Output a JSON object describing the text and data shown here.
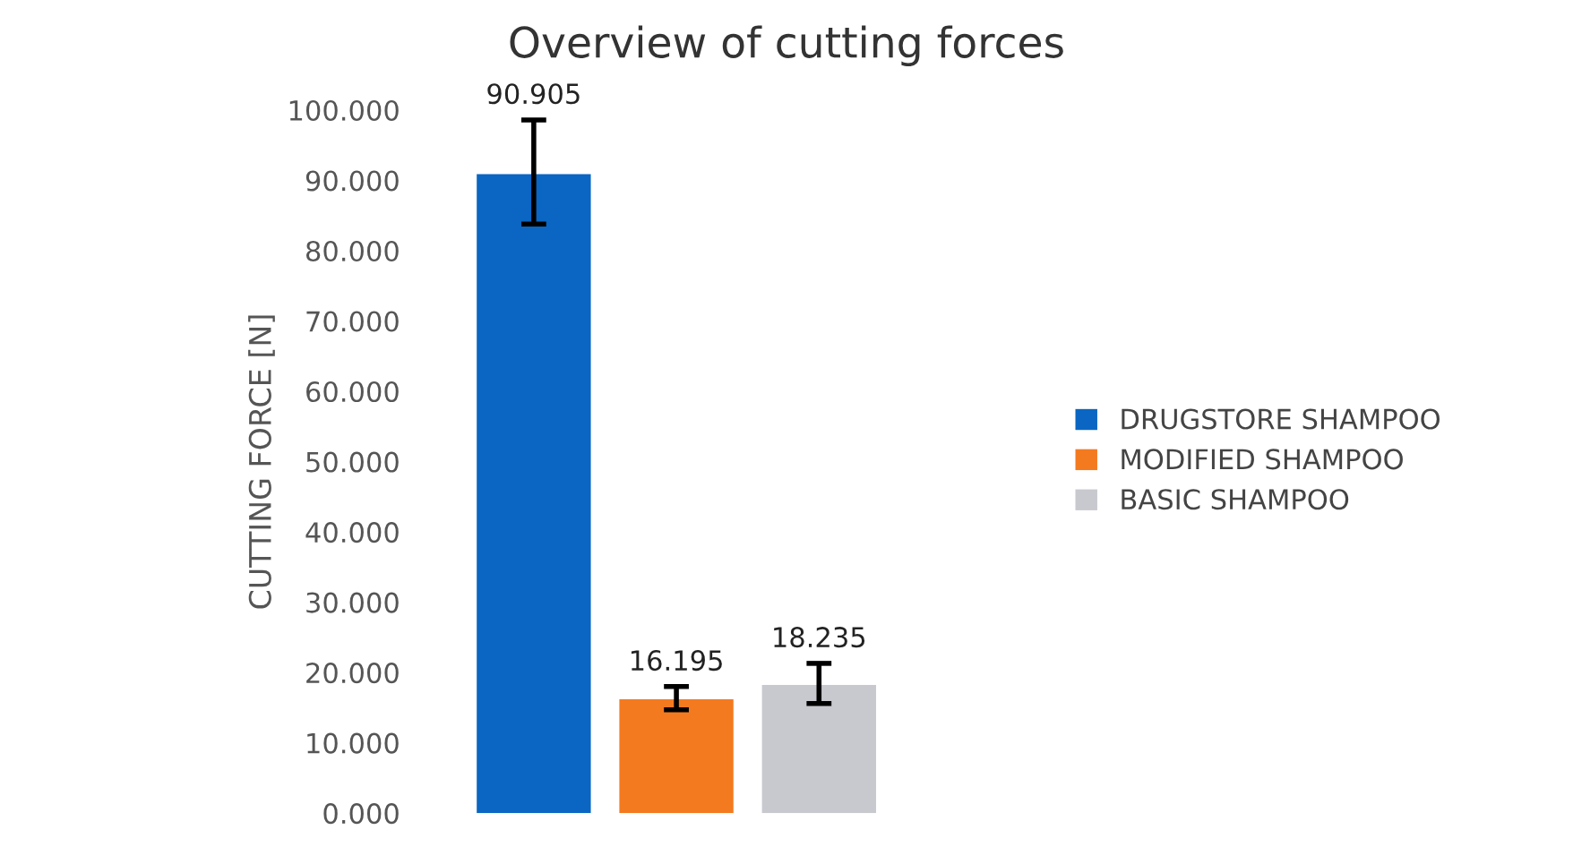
{
  "chart_data": {
    "type": "bar",
    "title": "Overview of cutting forces",
    "ylabel": "CUTTING FORCE [N]",
    "categories": [
      null
    ],
    "series": [
      {
        "name": "DRUGSTORE SHAMPOO",
        "color": "#0a66c2",
        "values": [
          90.905
        ],
        "errors": [
          [
            83.8,
            98.6
          ]
        ]
      },
      {
        "name": "MODIFIED SHAMPOO",
        "color": "#f47a1f",
        "values": [
          16.195
        ],
        "errors": [
          [
            14.7,
            18.0
          ]
        ]
      },
      {
        "name": "BASIC SHAMPOO",
        "color": "#c8c9ce",
        "values": [
          18.235
        ],
        "errors": [
          [
            15.6,
            21.3
          ]
        ]
      }
    ],
    "ylim": [
      0,
      100
    ],
    "yticks": [
      {
        "value": 0,
        "label": "0.000"
      },
      {
        "value": 10,
        "label": "10.000"
      },
      {
        "value": 20,
        "label": "20.000"
      },
      {
        "value": 30,
        "label": "30.000"
      },
      {
        "value": 40,
        "label": "40.000"
      },
      {
        "value": 50,
        "label": "50.000"
      },
      {
        "value": 60,
        "label": "60.000"
      },
      {
        "value": 70,
        "label": "70.000"
      },
      {
        "value": 80,
        "label": "80.000"
      },
      {
        "value": 90,
        "label": "90.000"
      },
      {
        "value": 100,
        "label": "100.000"
      }
    ],
    "data_labels": true,
    "legend": "right",
    "grid": false
  }
}
